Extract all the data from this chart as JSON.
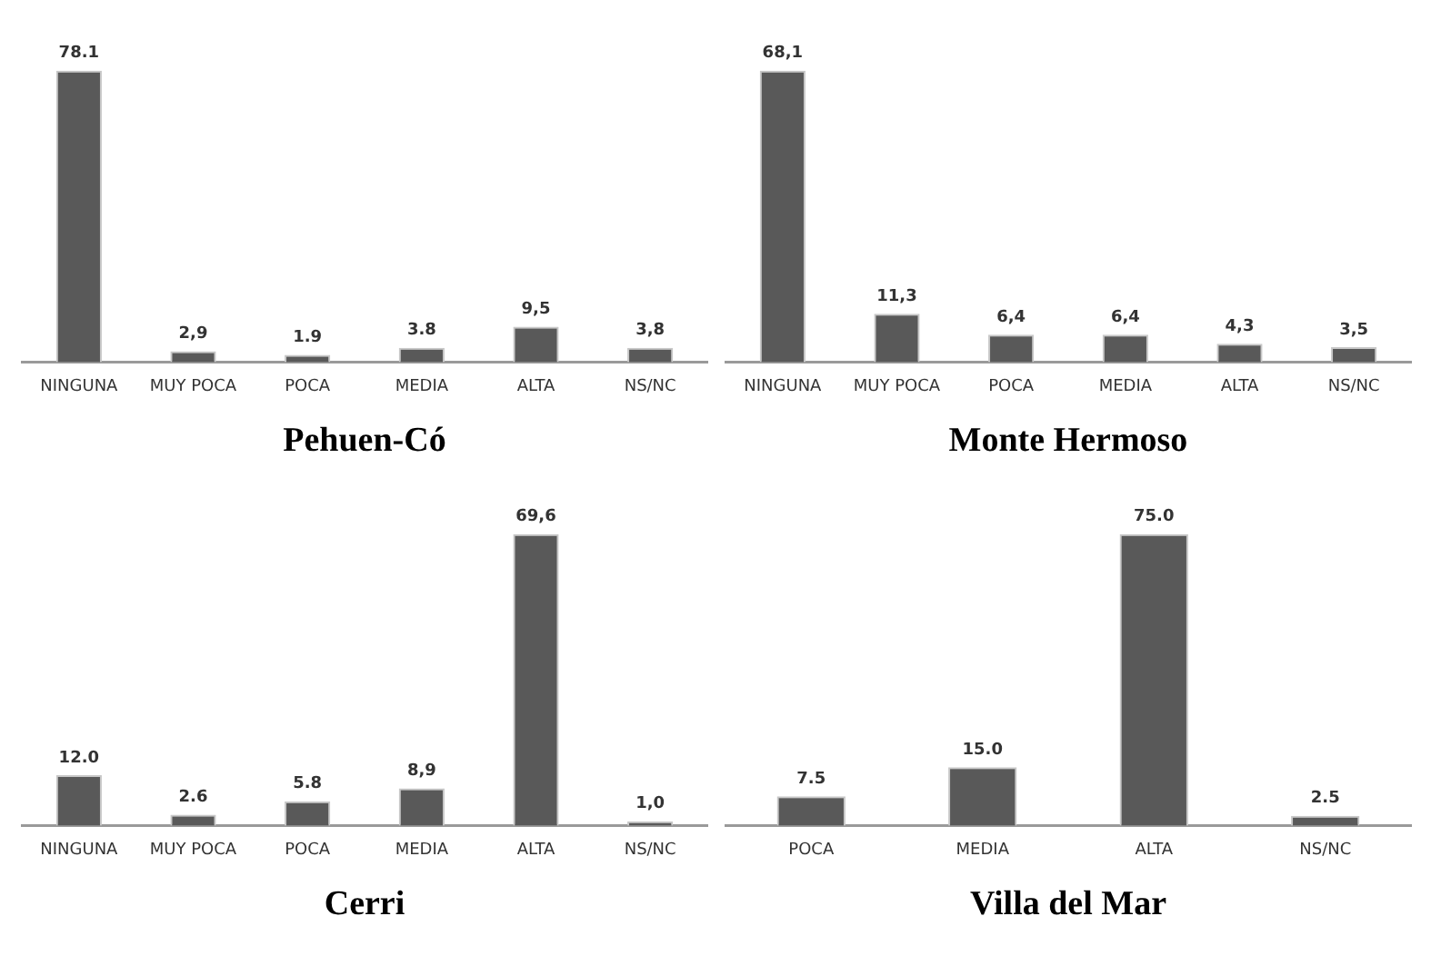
{
  "chart_data": [
    {
      "type": "bar",
      "title": "Pehuen-Có",
      "categories": [
        "NINGUNA",
        "MUY POCA",
        "POCA",
        "MEDIA",
        "ALTA",
        "NS/NC"
      ],
      "values": [
        78.1,
        2.9,
        1.9,
        3.8,
        9.5,
        3.8
      ],
      "value_labels": [
        "78.1",
        "2,9",
        "1.9",
        "3.8",
        "9,5",
        "3,8"
      ],
      "color": "#595959"
    },
    {
      "type": "bar",
      "title": "Monte Hermoso",
      "categories": [
        "NINGUNA",
        "MUY POCA",
        "POCA",
        "MEDIA",
        "ALTA",
        "NS/NC"
      ],
      "values": [
        68.1,
        11.3,
        6.4,
        6.4,
        4.3,
        3.5
      ],
      "value_labels": [
        "68,1",
        "11,3",
        "6,4",
        "6,4",
        "4,3",
        "3,5"
      ],
      "color": "#595959"
    },
    {
      "type": "bar",
      "title": "Cerri",
      "categories": [
        "NINGUNA",
        "MUY POCA",
        "POCA",
        "MEDIA",
        "ALTA",
        "NS/NC"
      ],
      "values": [
        12.0,
        2.6,
        5.8,
        8.9,
        69.6,
        1.0
      ],
      "value_labels": [
        "12.0",
        "2.6",
        "5.8",
        "8,9",
        "69,6",
        "1,0"
      ],
      "color": "#595959"
    },
    {
      "type": "bar",
      "title": "Villa del Mar",
      "categories": [
        "POCA",
        "MEDIA",
        "ALTA",
        "NS/NC"
      ],
      "values": [
        7.5,
        15.0,
        75.0,
        2.5
      ],
      "value_labels": [
        "7.5",
        "15.0",
        "75.0",
        "2.5"
      ],
      "color": "#595959"
    }
  ]
}
